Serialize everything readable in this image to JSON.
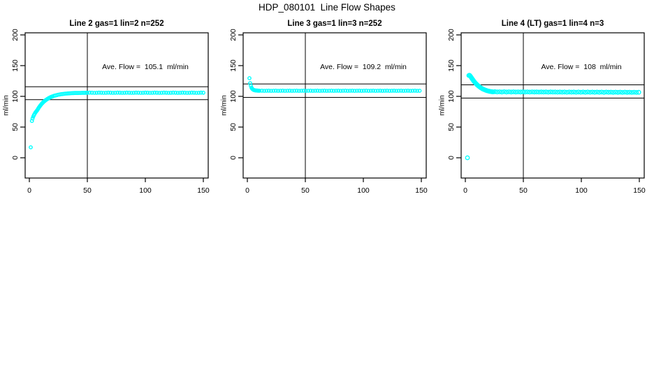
{
  "figure": {
    "title": "HDP_080101  Line Flow Shapes"
  },
  "colors": {
    "points": "#00FFFF",
    "axis": "#000000",
    "background": "#FFFFFF"
  },
  "chart_data": [
    {
      "type": "scatter",
      "title": "Line 2 gas=1 lin=2 n=252",
      "annotation": "Ave. Flow =  105.1  ml/min",
      "ave_flow": 105.1,
      "ylabel": "ml/min",
      "xlabel": "",
      "xlim": [
        0,
        150
      ],
      "ylim": [
        0,
        200
      ],
      "xticks": [
        0,
        50,
        100,
        150
      ],
      "yticks": [
        0,
        50,
        100,
        150,
        200
      ],
      "vline_x": 50,
      "hlines": [
        115.6,
        94.6
      ],
      "grid": false,
      "legend": "none",
      "point_radius": 2.2,
      "points": [
        [
          1.2,
          17
        ],
        [
          2.2,
          60
        ],
        [
          2.8,
          64
        ],
        [
          3.4,
          67
        ],
        [
          4,
          69.5
        ],
        [
          4.6,
          71.5
        ],
        [
          5.2,
          73.5
        ],
        [
          5.8,
          75
        ],
        [
          6.4,
          76.5
        ],
        [
          7,
          78
        ],
        [
          7.6,
          79.9
        ],
        [
          8.2,
          81.7
        ],
        [
          8.8,
          83.3
        ],
        [
          9.4,
          84.9
        ],
        [
          10,
          86.3
        ],
        [
          10.6,
          87.7
        ],
        [
          11.2,
          88.9
        ],
        [
          11.8,
          90.1
        ],
        [
          12.4,
          91.2
        ],
        [
          13,
          92.2
        ],
        [
          13.6,
          93.1
        ],
        [
          14.2,
          94
        ],
        [
          14.8,
          94.8
        ],
        [
          15.4,
          95.6
        ],
        [
          16,
          96.3
        ],
        [
          16.6,
          96.9
        ],
        [
          17.2,
          97.6
        ],
        [
          17.8,
          98.1
        ],
        [
          18.4,
          98.7
        ],
        [
          19,
          99.2
        ],
        [
          19.6,
          99.6
        ],
        [
          20.2,
          100.1
        ],
        [
          21.4,
          100.9
        ],
        [
          22.6,
          101.5
        ],
        [
          23.8,
          102.1
        ],
        [
          25,
          102.7
        ],
        [
          26.2,
          103.1
        ],
        [
          27.4,
          103.5
        ],
        [
          28.6,
          103.8
        ],
        [
          29.8,
          104.1
        ],
        [
          31,
          104.4
        ],
        [
          32.2,
          104.6
        ],
        [
          33.4,
          104.8
        ],
        [
          34.6,
          104.9
        ],
        [
          35.8,
          105.1
        ],
        [
          37,
          105.2
        ],
        [
          38.2,
          105.3
        ],
        [
          39.4,
          105.4
        ],
        [
          40.6,
          105.5
        ],
        [
          41.8,
          105.5
        ],
        [
          43,
          105.6
        ],
        [
          44.2,
          105.6
        ],
        [
          45.4,
          105.7
        ],
        [
          46.6,
          105.7
        ],
        [
          47.8,
          105.7
        ],
        [
          49,
          105.8
        ],
        [
          50,
          105.8
        ],
        [
          52,
          106.0
        ],
        [
          54,
          105.9
        ],
        [
          56,
          105.7
        ],
        [
          58,
          105.8
        ],
        [
          60,
          106.0
        ],
        [
          62,
          105.9
        ],
        [
          64,
          105.7
        ],
        [
          66,
          105.8
        ],
        [
          68,
          106.0
        ],
        [
          70,
          105.9
        ],
        [
          72,
          105.7
        ],
        [
          74,
          105.8
        ],
        [
          76,
          106.0
        ],
        [
          78,
          105.9
        ],
        [
          80,
          105.7
        ],
        [
          82,
          105.8
        ],
        [
          84,
          106.0
        ],
        [
          86,
          105.9
        ],
        [
          88,
          105.7
        ],
        [
          90,
          105.8
        ],
        [
          92,
          106.0
        ],
        [
          94,
          105.9
        ],
        [
          96,
          105.7
        ],
        [
          98,
          105.8
        ],
        [
          100,
          106.0
        ],
        [
          102,
          105.9
        ],
        [
          104,
          105.7
        ],
        [
          106,
          105.8
        ],
        [
          108,
          106.0
        ],
        [
          110,
          105.9
        ],
        [
          112,
          105.7
        ],
        [
          114,
          105.8
        ],
        [
          116,
          106.0
        ],
        [
          118,
          105.9
        ],
        [
          120,
          105.7
        ],
        [
          122,
          105.8
        ],
        [
          124,
          106.0
        ],
        [
          126,
          105.9
        ],
        [
          128,
          105.7
        ],
        [
          130,
          105.8
        ],
        [
          132,
          106.0
        ],
        [
          134,
          105.9
        ],
        [
          136,
          105.7
        ],
        [
          138,
          105.8
        ],
        [
          140,
          106.0
        ],
        [
          142,
          105.9
        ],
        [
          144,
          105.7
        ],
        [
          146,
          105.8
        ],
        [
          148,
          106.0
        ],
        [
          150,
          105.9
        ]
      ]
    },
    {
      "type": "scatter",
      "title": "Line 3 gas=1 lin=3 n=252",
      "annotation": "Ave. Flow =  109.2  ml/min",
      "ave_flow": 109.2,
      "ylabel": "ml/min",
      "xlabel": "",
      "xlim": [
        0,
        150
      ],
      "ylim": [
        0,
        200
      ],
      "xticks": [
        0,
        50,
        100,
        150
      ],
      "yticks": [
        0,
        50,
        100,
        150,
        200
      ],
      "vline_x": 50,
      "hlines": [
        120.1,
        98.3
      ],
      "grid": false,
      "legend": "none",
      "point_radius": 2.2,
      "points": [
        [
          1.8,
          129.5
        ],
        [
          2.4,
          121.5
        ],
        [
          3,
          117
        ],
        [
          3.6,
          114
        ],
        [
          4.2,
          112.3
        ],
        [
          4.8,
          111.2
        ],
        [
          5.4,
          110.5
        ],
        [
          6,
          110.1
        ],
        [
          6.6,
          109.8
        ],
        [
          7.2,
          109.6
        ],
        [
          7.8,
          109.5
        ],
        [
          8.4,
          109.4
        ],
        [
          9,
          109.3
        ],
        [
          9.6,
          109.2
        ],
        [
          10.5,
          109.1
        ],
        [
          12.5,
          109.2
        ],
        [
          14.5,
          109.0
        ],
        [
          16.5,
          109.1
        ],
        [
          18.5,
          109.2
        ],
        [
          20.5,
          109.0
        ],
        [
          22.5,
          109.1
        ],
        [
          24.5,
          109.2
        ],
        [
          26.5,
          109.0
        ],
        [
          28.5,
          109.1
        ],
        [
          30.5,
          109.2
        ],
        [
          32.5,
          109.0
        ],
        [
          34.5,
          109.1
        ],
        [
          36.5,
          109.2
        ],
        [
          38.5,
          109.0
        ],
        [
          40.5,
          109.1
        ],
        [
          42.5,
          109.2
        ],
        [
          44.5,
          109.0
        ],
        [
          46.5,
          109.1
        ],
        [
          48.5,
          109.2
        ],
        [
          50.5,
          109.0
        ],
        [
          52.5,
          109.1
        ],
        [
          54.5,
          109.2
        ],
        [
          56.5,
          109.0
        ],
        [
          58.5,
          109.1
        ],
        [
          60.5,
          109.2
        ],
        [
          62.5,
          109.0
        ],
        [
          64.5,
          109.1
        ],
        [
          66.5,
          109.2
        ],
        [
          68.5,
          109.0
        ],
        [
          70.5,
          109.1
        ],
        [
          72.5,
          109.2
        ],
        [
          74.5,
          109.0
        ],
        [
          76.5,
          109.1
        ],
        [
          78.5,
          109.2
        ],
        [
          80.5,
          109.0
        ],
        [
          82.5,
          109.1
        ],
        [
          84.5,
          109.2
        ],
        [
          86.5,
          109.0
        ],
        [
          88.5,
          109.1
        ],
        [
          90.5,
          109.2
        ],
        [
          92.5,
          109.0
        ],
        [
          94.5,
          109.1
        ],
        [
          96.5,
          109.2
        ],
        [
          98.5,
          109.0
        ],
        [
          100.5,
          109.1
        ],
        [
          102.5,
          109.2
        ],
        [
          104.5,
          109.0
        ],
        [
          106.5,
          109.1
        ],
        [
          108.5,
          109.2
        ],
        [
          110.5,
          109.0
        ],
        [
          112.5,
          109.1
        ],
        [
          114.5,
          109.2
        ],
        [
          116.5,
          109.0
        ],
        [
          118.5,
          109.1
        ],
        [
          120.5,
          109.2
        ],
        [
          122.5,
          109.0
        ],
        [
          124.5,
          109.1
        ],
        [
          126.5,
          109.2
        ],
        [
          128.5,
          109.0
        ],
        [
          130.5,
          109.1
        ],
        [
          132.5,
          109.2
        ],
        [
          134.5,
          109.0
        ],
        [
          136.5,
          109.1
        ],
        [
          138.5,
          109.2
        ],
        [
          140.5,
          109.0
        ],
        [
          142.5,
          109.1
        ],
        [
          144.5,
          109.2
        ],
        [
          146.5,
          109.0
        ],
        [
          148.5,
          109.1
        ]
      ]
    },
    {
      "type": "scatter",
      "title": "Line 4 (LT) gas=1 lin=4 n=3",
      "annotation": "Ave. Flow =  108  ml/min",
      "ave_flow": 108,
      "ylabel": "ml/min",
      "xlabel": "",
      "xlim": [
        0,
        150
      ],
      "ylim": [
        0,
        200
      ],
      "xticks": [
        0,
        50,
        100,
        150
      ],
      "yticks": [
        0,
        50,
        100,
        150,
        200
      ],
      "vline_x": 50,
      "hlines": [
        118.8,
        97.2
      ],
      "grid": false,
      "legend": "none",
      "point_radius": 2.7,
      "points": [
        [
          1.8,
          0
        ],
        [
          3,
          134
        ],
        [
          3.5,
          134.3
        ],
        [
          4,
          133.6
        ],
        [
          4.5,
          132.4
        ],
        [
          5,
          131
        ],
        [
          5.5,
          129.6
        ],
        [
          6,
          128.2
        ],
        [
          6.5,
          126.9
        ],
        [
          7,
          125.6
        ],
        [
          7.5,
          124.4
        ],
        [
          8,
          123.2
        ],
        [
          8.5,
          122.1
        ],
        [
          9,
          121
        ],
        [
          9.5,
          120
        ],
        [
          10,
          119
        ],
        [
          10.7,
          117.8
        ],
        [
          11.4,
          116.7
        ],
        [
          12.1,
          115.7
        ],
        [
          12.8,
          114.7
        ],
        [
          13.5,
          113.8
        ],
        [
          14.2,
          113
        ],
        [
          14.9,
          112.2
        ],
        [
          15.6,
          111.5
        ],
        [
          16.3,
          110.9
        ],
        [
          17,
          110.3
        ],
        [
          17.7,
          109.8
        ],
        [
          18.4,
          109.4
        ],
        [
          19.1,
          109
        ],
        [
          19.8,
          108.6
        ],
        [
          20.5,
          108.3
        ],
        [
          21.2,
          108
        ],
        [
          21.9,
          107.8
        ],
        [
          22.6,
          107.6
        ],
        [
          23.3,
          107.4
        ],
        [
          24,
          107.3
        ],
        [
          25.5,
          107.6
        ],
        [
          27.5,
          107.2
        ],
        [
          29.5,
          107.4
        ],
        [
          31.5,
          107.1
        ],
        [
          33.5,
          107.5
        ],
        [
          35.5,
          107.1
        ],
        [
          37.5,
          107.4
        ],
        [
          39.5,
          107.0
        ],
        [
          41.5,
          107.4
        ],
        [
          43.5,
          107.1
        ],
        [
          45.5,
          107.3
        ],
        [
          47.5,
          107.0
        ],
        [
          49.5,
          107.4
        ],
        [
          51.5,
          107.0
        ],
        [
          53.5,
          107.3
        ],
        [
          55.5,
          106.9
        ],
        [
          57.5,
          107.3
        ],
        [
          59.5,
          107.0
        ],
        [
          61.5,
          107.2
        ],
        [
          63.5,
          106.9
        ],
        [
          65.5,
          107.2
        ],
        [
          67.5,
          106.9
        ],
        [
          69.5,
          107.2
        ],
        [
          71.5,
          106.8
        ],
        [
          73.5,
          107.2
        ],
        [
          75.5,
          106.9
        ],
        [
          77.5,
          107.1
        ],
        [
          79.5,
          106.8
        ],
        [
          81.5,
          107.1
        ],
        [
          83.5,
          106.8
        ],
        [
          85.5,
          107.1
        ],
        [
          87.5,
          106.7
        ],
        [
          89.5,
          107.1
        ],
        [
          91.5,
          106.8
        ],
        [
          93.5,
          107.0
        ],
        [
          95.5,
          106.7
        ],
        [
          97.5,
          107.0
        ],
        [
          99.5,
          106.7
        ],
        [
          101.5,
          107.0
        ],
        [
          103.5,
          106.6
        ],
        [
          105.5,
          107.0
        ],
        [
          107.5,
          106.7
        ],
        [
          109.5,
          106.9
        ],
        [
          111.5,
          106.6
        ],
        [
          113.5,
          106.9
        ],
        [
          115.5,
          106.6
        ],
        [
          117.5,
          106.9
        ],
        [
          119.5,
          106.5
        ],
        [
          121.5,
          106.9
        ],
        [
          123.5,
          106.6
        ],
        [
          125.5,
          106.8
        ],
        [
          127.5,
          106.5
        ],
        [
          129.5,
          106.8
        ],
        [
          131.5,
          106.5
        ],
        [
          133.5,
          106.8
        ],
        [
          135.5,
          106.4
        ],
        [
          137.5,
          106.8
        ],
        [
          139.5,
          106.5
        ],
        [
          141.5,
          106.7
        ],
        [
          143.5,
          106.4
        ],
        [
          145.5,
          106.7
        ],
        [
          147.5,
          106.4
        ],
        [
          149.5,
          106.6
        ]
      ]
    }
  ]
}
